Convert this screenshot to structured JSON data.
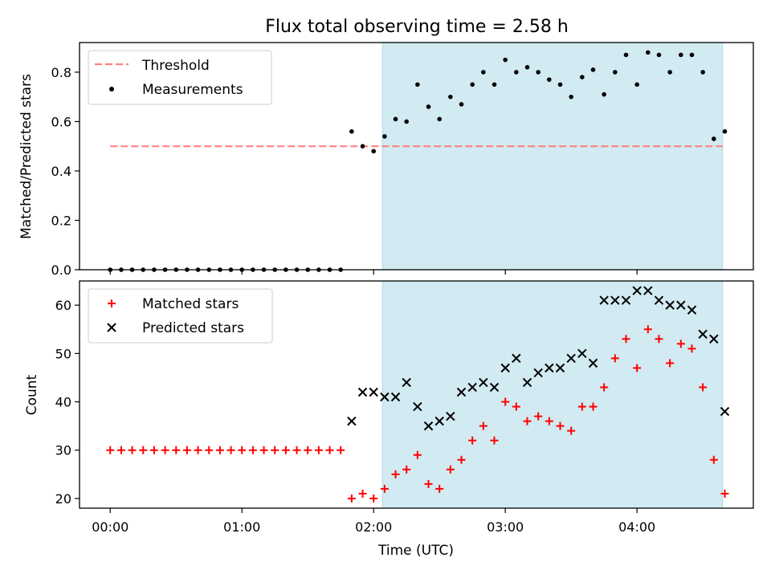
{
  "chart_data": [
    {
      "type": "scatter",
      "title": "Flux total observing time = 2.58 h",
      "xlabel": "",
      "ylabel": "Matched/Predicted stars",
      "xlim": [
        "23:46",
        "04:53"
      ],
      "ylim": [
        0,
        0.92
      ],
      "yticks": [
        "0.0",
        "0.2",
        "0.4",
        "0.6",
        "0.8"
      ],
      "grid": false,
      "legend_position": "upper-left",
      "shaded_region": {
        "x_start": "02:04",
        "x_end": "04:39",
        "color": "#add8e6"
      },
      "threshold": {
        "name": "Threshold",
        "value": 0.5,
        "x_start": "00:00",
        "x_end": "04:39",
        "color": "#ff8080",
        "style": "dashed"
      },
      "series": [
        {
          "name": "Measurements",
          "marker": "dot",
          "color": "#000000",
          "x": [
            "00:00",
            "00:05",
            "00:10",
            "00:15",
            "00:20",
            "00:25",
            "00:30",
            "00:35",
            "00:40",
            "00:45",
            "00:50",
            "00:55",
            "01:00",
            "01:05",
            "01:10",
            "01:15",
            "01:20",
            "01:25",
            "01:30",
            "01:35",
            "01:40",
            "01:45",
            "01:50",
            "01:55",
            "02:00",
            "02:05",
            "02:10",
            "02:15",
            "02:20",
            "02:25",
            "02:30",
            "02:35",
            "02:40",
            "02:45",
            "02:50",
            "02:55",
            "03:00",
            "03:05",
            "03:10",
            "03:15",
            "03:20",
            "03:25",
            "03:30",
            "03:35",
            "03:40",
            "03:45",
            "03:50",
            "03:55",
            "04:00",
            "04:05",
            "04:10",
            "04:15",
            "04:20",
            "04:25",
            "04:30",
            "04:35",
            "04:40"
          ],
          "y": [
            0,
            0,
            0,
            0,
            0,
            0,
            0,
            0,
            0,
            0,
            0,
            0,
            0,
            0,
            0,
            0,
            0,
            0,
            0,
            0,
            0,
            0,
            0.56,
            0.5,
            0.48,
            0.54,
            0.61,
            0.6,
            0.75,
            0.66,
            0.61,
            0.7,
            0.67,
            0.75,
            0.8,
            0.75,
            0.85,
            0.8,
            0.82,
            0.8,
            0.77,
            0.75,
            0.7,
            0.78,
            0.81,
            0.71,
            0.8,
            0.87,
            0.75,
            0.88,
            0.87,
            0.8,
            0.87,
            0.87,
            0.8,
            0.53,
            0.56
          ]
        }
      ]
    },
    {
      "type": "scatter",
      "title": "",
      "xlabel": "Time (UTC)",
      "ylabel": "Count",
      "xlim": [
        "23:46",
        "04:53"
      ],
      "ylim": [
        18,
        65
      ],
      "xticks": [
        "00:00",
        "01:00",
        "02:00",
        "03:00",
        "04:00"
      ],
      "yticks": [
        "20",
        "30",
        "40",
        "50",
        "60"
      ],
      "grid": false,
      "legend_position": "upper-left",
      "shaded_region": {
        "x_start": "02:04",
        "x_end": "04:39",
        "color": "#add8e6"
      },
      "series": [
        {
          "name": "Matched stars",
          "marker": "plus",
          "color": "#ff0000",
          "x": [
            "00:00",
            "00:05",
            "00:10",
            "00:15",
            "00:20",
            "00:25",
            "00:30",
            "00:35",
            "00:40",
            "00:45",
            "00:50",
            "00:55",
            "01:00",
            "01:05",
            "01:10",
            "01:15",
            "01:20",
            "01:25",
            "01:30",
            "01:35",
            "01:40",
            "01:45",
            "01:50",
            "01:55",
            "02:00",
            "02:05",
            "02:10",
            "02:15",
            "02:20",
            "02:25",
            "02:30",
            "02:35",
            "02:40",
            "02:45",
            "02:50",
            "02:55",
            "03:00",
            "03:05",
            "03:10",
            "03:15",
            "03:20",
            "03:25",
            "03:30",
            "03:35",
            "03:40",
            "03:45",
            "03:50",
            "03:55",
            "04:00",
            "04:05",
            "04:10",
            "04:15",
            "04:20",
            "04:25",
            "04:30",
            "04:35",
            "04:40"
          ],
          "y": [
            30,
            30,
            30,
            30,
            30,
            30,
            30,
            30,
            30,
            30,
            30,
            30,
            30,
            30,
            30,
            30,
            30,
            30,
            30,
            30,
            30,
            30,
            20,
            21,
            20,
            22,
            25,
            26,
            29,
            23,
            22,
            26,
            28,
            32,
            35,
            32,
            40,
            39,
            36,
            37,
            36,
            35,
            34,
            39,
            39,
            43,
            49,
            53,
            47,
            55,
            53,
            48,
            52,
            51,
            43,
            28,
            21
          ]
        },
        {
          "name": "Predicted stars",
          "marker": "x",
          "color": "#000000",
          "x": [
            "01:50",
            "01:55",
            "02:00",
            "02:05",
            "02:10",
            "02:15",
            "02:20",
            "02:25",
            "02:30",
            "02:35",
            "02:40",
            "02:45",
            "02:50",
            "02:55",
            "03:00",
            "03:05",
            "03:10",
            "03:15",
            "03:20",
            "03:25",
            "03:30",
            "03:35",
            "03:40",
            "03:45",
            "03:50",
            "03:55",
            "04:00",
            "04:05",
            "04:10",
            "04:15",
            "04:20",
            "04:25",
            "04:30",
            "04:35",
            "04:40"
          ],
          "y": [
            36,
            42,
            42,
            41,
            41,
            44,
            39,
            35,
            36,
            37,
            42,
            43,
            44,
            43,
            47,
            49,
            44,
            46,
            47,
            47,
            49,
            50,
            48,
            61,
            61,
            61,
            63,
            63,
            61,
            60,
            60,
            59,
            54,
            53,
            38
          ]
        }
      ]
    }
  ]
}
